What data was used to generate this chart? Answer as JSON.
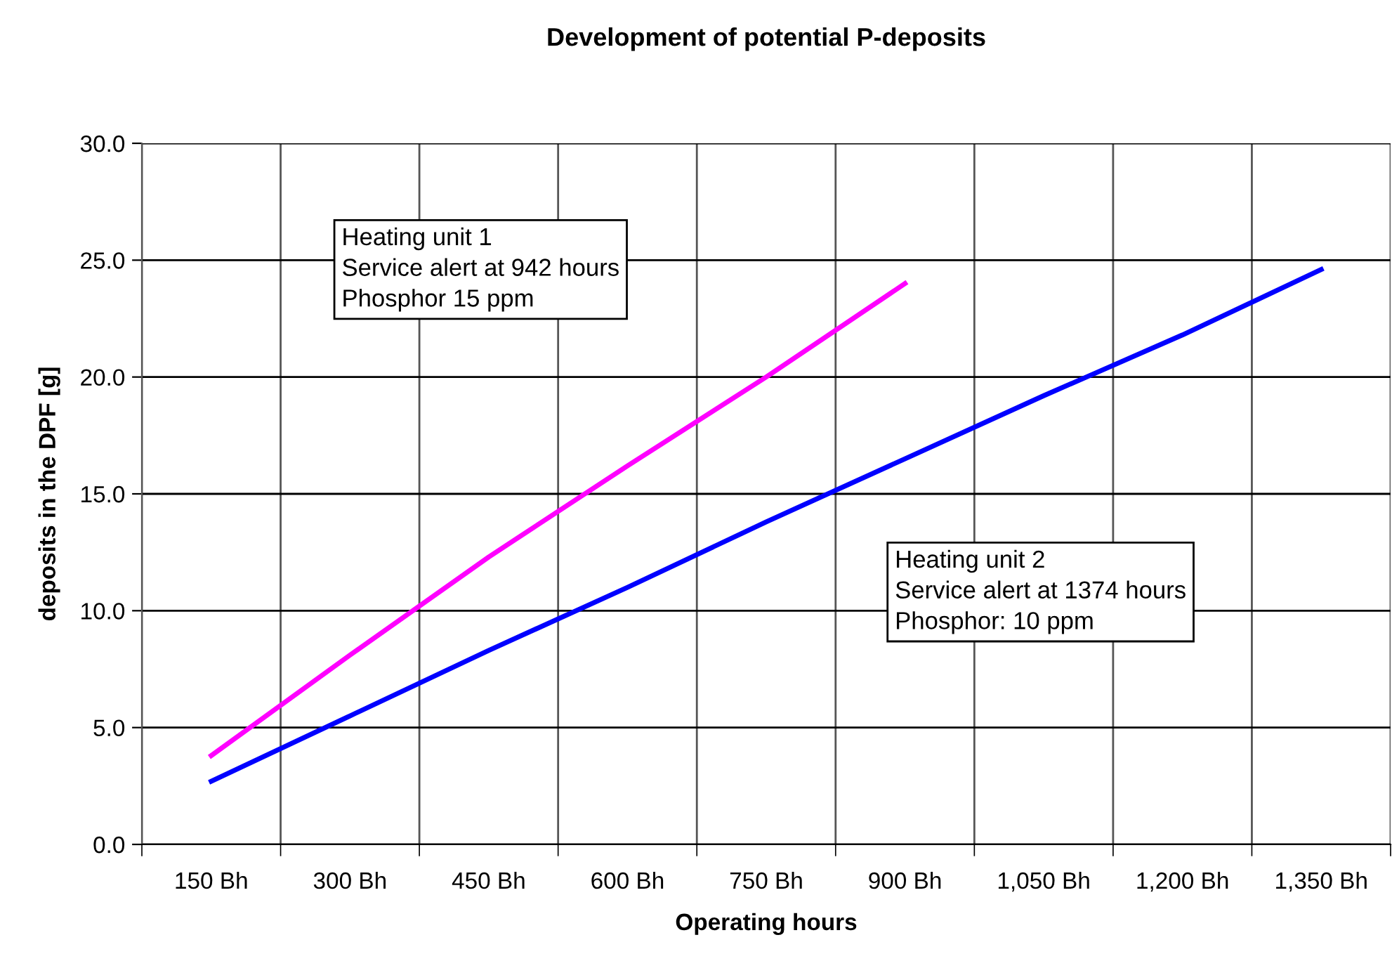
{
  "chart_data": {
    "type": "line",
    "title": "Development of potential P-deposits",
    "xlabel": "Operating hours",
    "ylabel": "deposits in the DPF [g]",
    "categories": [
      "150 Bh",
      "300 Bh",
      "450 Bh",
      "600 Bh",
      "750 Bh",
      "900 Bh",
      "1,050 Bh",
      "1,200 Bh",
      "1,350 Bh"
    ],
    "series": [
      {
        "color": "#ff00ff",
        "values": [
          3.8,
          8.1,
          12.3,
          16.2,
          20.0,
          24.0,
          null,
          null,
          null
        ]
      },
      {
        "color": "#0000ff",
        "values": [
          2.7,
          5.5,
          8.3,
          11.0,
          13.8,
          16.5,
          19.2,
          21.8,
          24.6
        ]
      }
    ],
    "ylim": [
      0,
      30
    ],
    "yticks": [
      {
        "value": 0,
        "label": "0.0"
      },
      {
        "value": 5,
        "label": "5.0"
      },
      {
        "value": 10,
        "label": "10.0"
      },
      {
        "value": 15,
        "label": "15.0"
      },
      {
        "value": 20,
        "label": "20.0"
      },
      {
        "value": 25,
        "label": "25.0"
      },
      {
        "value": 30,
        "label": "30.0"
      }
    ],
    "grid": true,
    "legend": false,
    "marker": "none",
    "line_style": "solid",
    "annotations": [
      "Heating unit 1\nService alert at 942 hours\nPhosphor 15 ppm",
      "Heating unit 2\nService alert at 1374 hours\nPhosphor: 10 ppm"
    ]
  }
}
